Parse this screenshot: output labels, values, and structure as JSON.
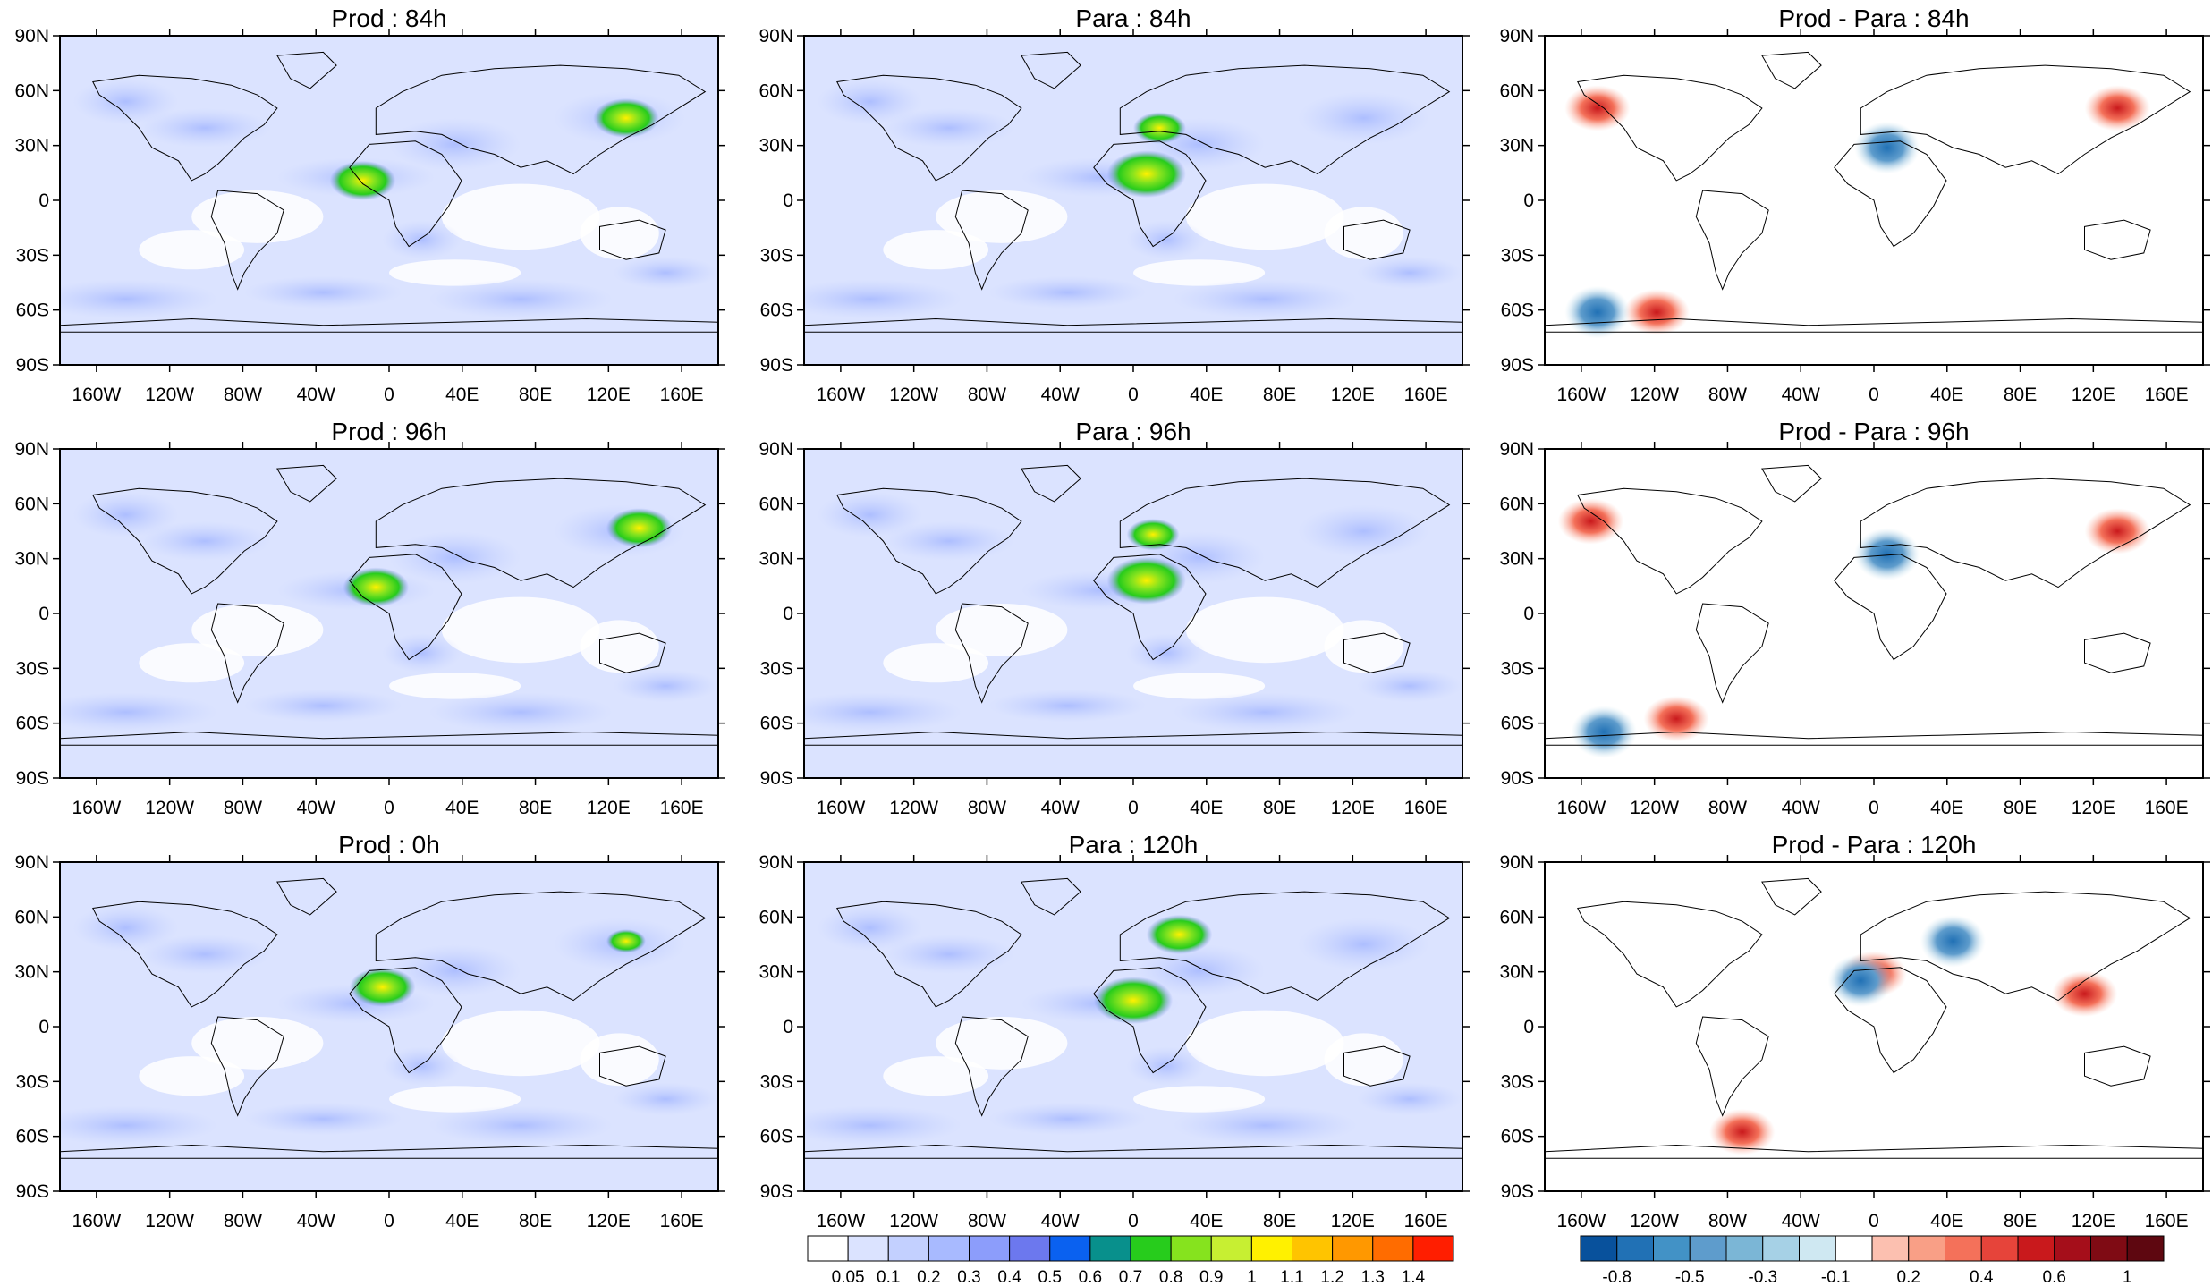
{
  "grid": {
    "columns": [
      "Prod",
      "Para",
      "Prod - Para"
    ]
  },
  "panels": [
    {
      "id": "prod-84h",
      "title": "Prod : 84h",
      "kind": "field",
      "hour": 84
    },
    {
      "id": "para-84h",
      "title": "Para : 84h",
      "kind": "field",
      "hour": 84
    },
    {
      "id": "diff-84h",
      "title": "Prod - Para : 84h",
      "kind": "diff",
      "hour": 84
    },
    {
      "id": "prod-96h",
      "title": "Prod : 96h",
      "kind": "field",
      "hour": 96
    },
    {
      "id": "para-96h",
      "title": "Para : 96h",
      "kind": "field",
      "hour": 96
    },
    {
      "id": "diff-96h",
      "title": "Prod - Para : 96h",
      "kind": "diff",
      "hour": 96
    },
    {
      "id": "prod-0h",
      "title": "Prod : 0h",
      "kind": "field",
      "hour": 0
    },
    {
      "id": "para-120h",
      "title": "Para : 120h",
      "kind": "field",
      "hour": 120
    },
    {
      "id": "diff-120h",
      "title": "Prod - Para : 120h",
      "kind": "diff",
      "hour": 120
    }
  ],
  "lat_ticks": [
    "90N",
    "60N",
    "30N",
    "0",
    "30S",
    "60S",
    "90S"
  ],
  "lon_ticks": [
    "160W",
    "120W",
    "80W",
    "40W",
    "0",
    "40E",
    "80E",
    "120E",
    "160E"
  ],
  "colorbars": [
    {
      "id": "field-colorbar",
      "labels": [
        "0.05",
        "0.1",
        "0.2",
        "0.3",
        "0.4",
        "0.5",
        "0.6",
        "0.7",
        "0.8",
        "0.9",
        "1",
        "1.1",
        "1.2",
        "1.3",
        "1.4"
      ],
      "colors": [
        "#ffffff",
        "#dbe3ff",
        "#c3d0ff",
        "#a8baff",
        "#8c9dfb",
        "#6c78ee",
        "#0a61f0",
        "#08908c",
        "#27cc1c",
        "#86e31e",
        "#c7ef32",
        "#fff100",
        "#ffc400",
        "#ff9800",
        "#ff6c00",
        "#ff1e00"
      ]
    },
    {
      "id": "diff-colorbar",
      "labels": [
        "-0.8",
        "",
        "-0.5",
        "",
        "-0.3",
        "",
        "-0.1",
        "",
        "0.2",
        "",
        "0.4",
        "",
        "0.6",
        "",
        "1"
      ],
      "colors": [
        "#08519c",
        "#2171b5",
        "#4292c6",
        "#5e9ccc",
        "#7bb6d6",
        "#a6d1e6",
        "#cfe8f2",
        "#ffffff",
        "#fcc0b0",
        "#f99f86",
        "#f4715a",
        "#e6443a",
        "#c9191c",
        "#a50e1a",
        "#7f0b14",
        "#5e0710"
      ]
    }
  ]
}
